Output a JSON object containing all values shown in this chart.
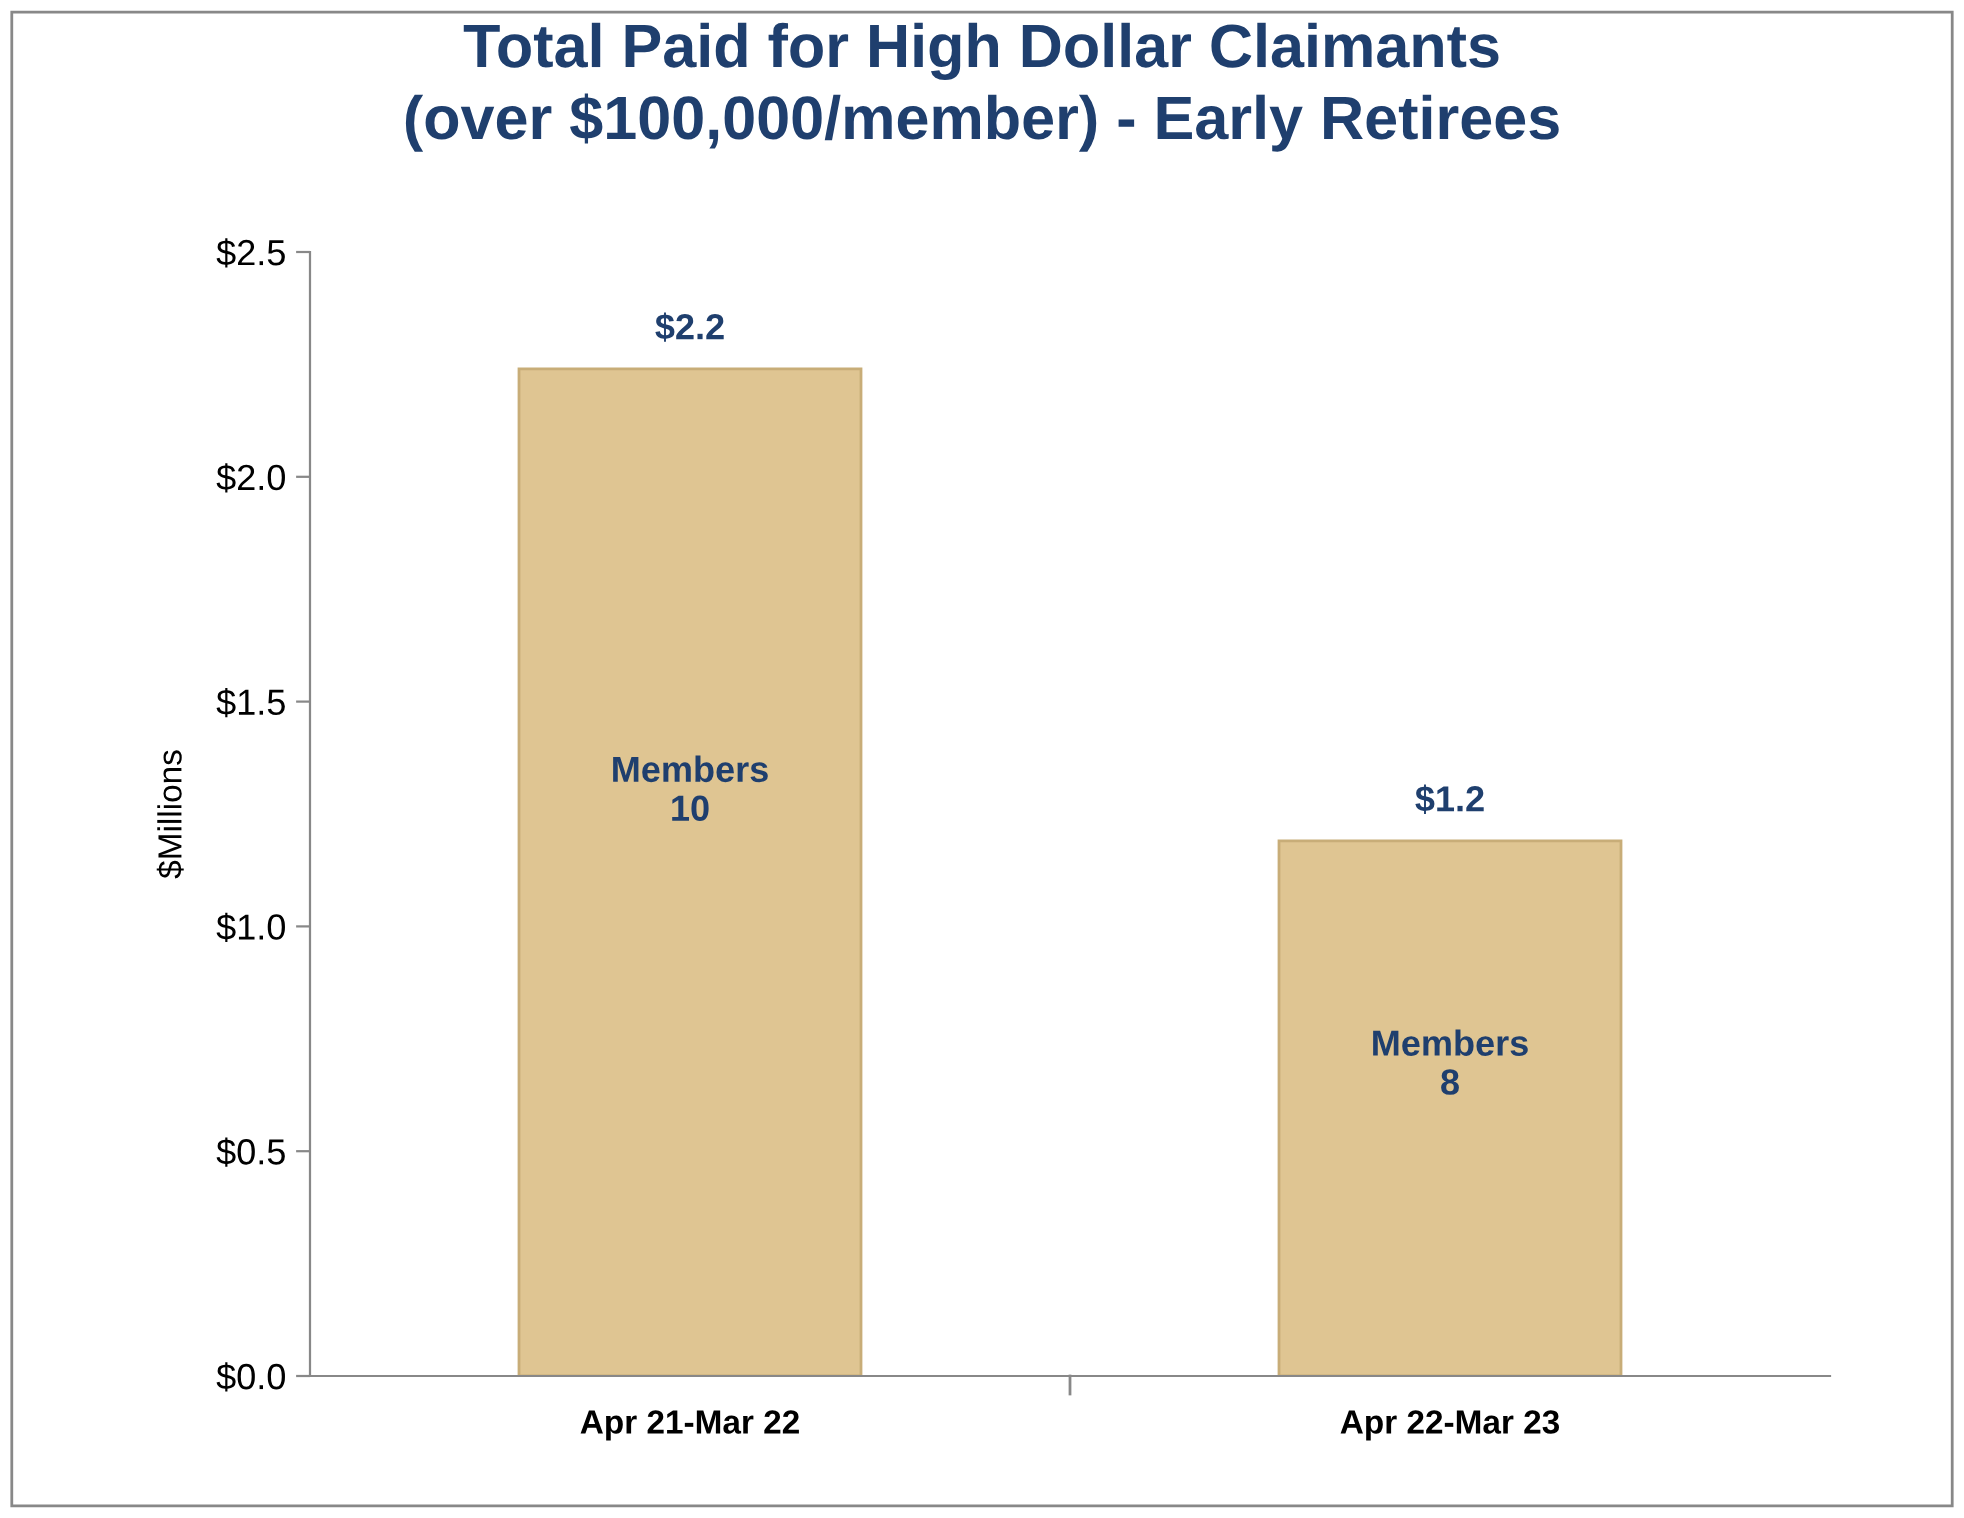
{
  "chart_data": {
    "type": "bar",
    "title": "Total Paid for High Dollar Claimants\n(over $100,000/member) - Early Retirees",
    "ylabel": "$Millions",
    "categories": [
      "Apr 21-Mar 22",
      "Apr 22-Mar 23"
    ],
    "values": [
      2.24,
      1.19
    ],
    "color": "#dfc592",
    "value_labels": [
      "$2.2",
      "$1.2"
    ],
    "annotations": [
      "Members\n10",
      "Members\n8"
    ],
    "ylim": [
      0,
      2.5
    ],
    "yticks": [
      {
        "value": 0,
        "label": "$0.0"
      },
      {
        "value": 0.5,
        "label": "$0.5"
      },
      {
        "value": 1.0,
        "label": "$1.0"
      },
      {
        "value": 1.5,
        "label": "$1.5"
      },
      {
        "value": 2.0,
        "label": "$2.0"
      },
      {
        "value": 2.5,
        "label": "$2.5"
      }
    ],
    "grid": false,
    "legend": false
  }
}
